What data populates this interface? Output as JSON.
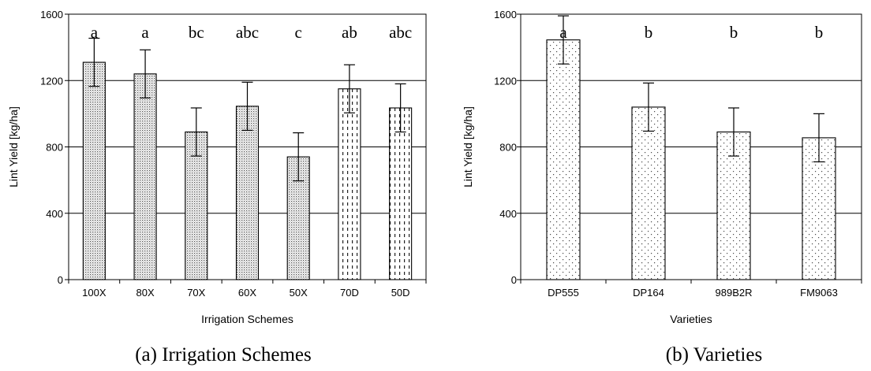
{
  "chart_data": [
    {
      "type": "bar",
      "caption": "(a) Irrigation Schemes",
      "xlabel": "Irrigation Schemes",
      "ylabel": "Lint Yield [kg/ha]",
      "ylim": [
        0,
        1600
      ],
      "yticks": [
        0,
        400,
        800,
        1200,
        1600
      ],
      "grid": "horizontal",
      "categories": [
        "100X",
        "80X",
        "70X",
        "60X",
        "50X",
        "70D",
        "50D"
      ],
      "values": [
        1310,
        1240,
        890,
        1045,
        740,
        1150,
        1035
      ],
      "error": [
        145,
        145,
        145,
        145,
        145,
        145,
        145
      ],
      "labels": [
        "a",
        "a",
        "bc",
        "abc",
        "c",
        "ab",
        "abc"
      ],
      "patterns": [
        "fine-dots",
        "fine-dots",
        "fine-dots",
        "fine-dots",
        "fine-dots",
        "dashes",
        "dashes"
      ]
    },
    {
      "type": "bar",
      "caption": "(b) Varieties",
      "xlabel": "Varieties",
      "ylabel": "Lint Yield [kg/ha]",
      "ylim": [
        0,
        1600
      ],
      "yticks": [
        0,
        400,
        800,
        1200,
        1600
      ],
      "grid": "horizontal",
      "categories": [
        "DP555",
        "DP164",
        "989B2R",
        "FM9063"
      ],
      "values": [
        1445,
        1040,
        890,
        855
      ],
      "error": [
        145,
        145,
        145,
        145
      ],
      "labels": [
        "a",
        "b",
        "b",
        "b"
      ],
      "patterns": [
        "sparse-dots",
        "sparse-dots",
        "sparse-dots",
        "sparse-dots"
      ]
    }
  ]
}
